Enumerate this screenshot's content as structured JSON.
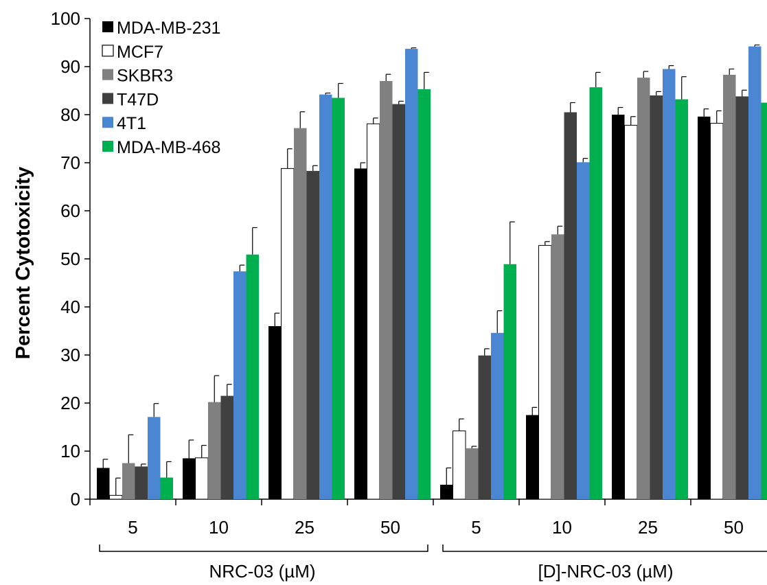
{
  "chart_data": {
    "type": "bar",
    "title": "",
    "ylabel": "Percent Cytotoxicity",
    "ylim": [
      0,
      100
    ],
    "yticks": [
      0,
      10,
      20,
      30,
      40,
      50,
      60,
      70,
      80,
      90,
      100
    ],
    "grid": false,
    "legend_position": "top-left",
    "groups": [
      {
        "label": "NRC-03 (µM)",
        "categories": [
          "5",
          "10",
          "25",
          "50"
        ]
      },
      {
        "label": "[D]-NRC-03 (µM)",
        "categories": [
          "5",
          "10",
          "25",
          "50"
        ]
      }
    ],
    "categories": [
      "5",
      "10",
      "25",
      "50",
      "5",
      "10",
      "25",
      "50"
    ],
    "series": [
      {
        "name": "MDA-MB-231",
        "color": "#000000",
        "values": [
          6.5,
          8.5,
          36.0,
          68.8,
          3.0,
          17.5,
          80.0,
          79.6
        ],
        "errors": [
          1.8,
          3.8,
          2.7,
          1.2,
          3.5,
          1.6,
          1.5,
          1.6
        ]
      },
      {
        "name": "MCF7",
        "color": "#ffffff",
        "values": [
          0.8,
          8.6,
          68.8,
          78.1,
          14.2,
          52.8,
          77.8,
          78.2
        ],
        "errors": [
          3.6,
          2.6,
          4.1,
          1.2,
          2.5,
          0.8,
          1.8,
          2.6
        ]
      },
      {
        "name": "SKBR3",
        "color": "#808080",
        "values": [
          7.5,
          20.2,
          77.2,
          87.0,
          10.6,
          55.1,
          87.7,
          88.3
        ],
        "errors": [
          5.9,
          5.5,
          3.4,
          1.4,
          0.4,
          1.7,
          1.3,
          1.2
        ]
      },
      {
        "name": "T47D",
        "color": "#404040",
        "values": [
          6.8,
          21.5,
          68.3,
          82.2,
          29.9,
          80.5,
          84.0,
          83.8
        ],
        "errors": [
          0.5,
          2.4,
          1.1,
          0.6,
          1.4,
          2.0,
          0.8,
          1.3
        ]
      },
      {
        "name": "4T1",
        "color": "#4a86d2",
        "values": [
          17.1,
          47.4,
          84.2,
          93.7,
          34.6,
          70.1,
          89.5,
          94.2
        ],
        "errors": [
          2.8,
          1.3,
          0.3,
          0.2,
          4.6,
          0.8,
          0.7,
          0.3
        ]
      },
      {
        "name": "MDA-MB-468",
        "color": "#00b04f",
        "values": [
          4.5,
          50.9,
          83.5,
          85.3,
          48.9,
          85.7,
          83.2,
          82.5
        ],
        "errors": [
          3.3,
          5.6,
          3.0,
          3.5,
          8.8,
          3.1,
          4.7,
          5.4
        ]
      }
    ]
  }
}
